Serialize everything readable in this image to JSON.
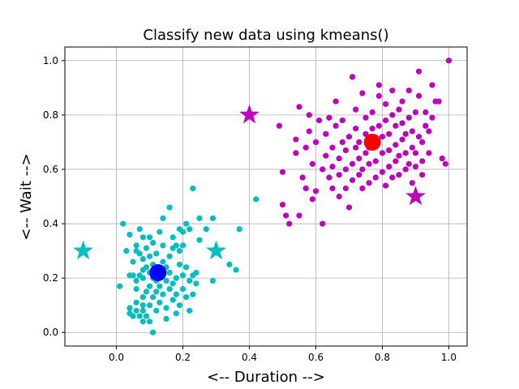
{
  "chart_data": {
    "type": "scatter",
    "title": "Classify new data using kmeans()",
    "xlabel": "<-- Duration -->",
    "ylabel": "<-- Wait -->",
    "xlim": [
      -0.155,
      1.055
    ],
    "ylim": [
      -0.05,
      1.05
    ],
    "xticks": [
      "0.0",
      "0.2",
      "0.4",
      "0.6",
      "0.8",
      "1.0"
    ],
    "yticks": [
      "0.0",
      "0.2",
      "0.4",
      "0.6",
      "0.8",
      "1.0"
    ],
    "grid": true,
    "colors": {
      "cluster_1": "#00bfbf",
      "cluster_2": "#bf00bf",
      "centroid_1": "#0000ff",
      "centroid_2": "#ff0000"
    },
    "series": [
      {
        "values": [
          [
            0.01,
            0.17
          ],
          [
            0.02,
            0.4
          ],
          [
            0.03,
            0.3
          ],
          [
            0.04,
            0.21
          ],
          [
            0.04,
            0.36
          ],
          [
            0.04,
            0.09
          ],
          [
            0.04,
            0.07
          ],
          [
            0.05,
            0.06
          ],
          [
            0.05,
            0.21
          ],
          [
            0.05,
            0.26
          ],
          [
            0.06,
            0.19
          ],
          [
            0.06,
            0.3
          ],
          [
            0.06,
            0.32
          ],
          [
            0.06,
            0.08
          ],
          [
            0.06,
            0.11
          ],
          [
            0.06,
            0.16
          ],
          [
            0.07,
            0.21
          ],
          [
            0.07,
            0.29
          ],
          [
            0.07,
            0.38
          ],
          [
            0.07,
            0.06
          ],
          [
            0.08,
            0.1
          ],
          [
            0.08,
            0.13
          ],
          [
            0.08,
            0.2
          ],
          [
            0.08,
            0.23
          ],
          [
            0.08,
            0.27
          ],
          [
            0.08,
            0.35
          ],
          [
            0.08,
            0.04
          ],
          [
            0.08,
            0.08
          ],
          [
            0.09,
            0.15
          ],
          [
            0.09,
            0.24
          ],
          [
            0.09,
            0.31
          ],
          [
            0.09,
            0.06
          ],
          [
            0.1,
            0.1
          ],
          [
            0.1,
            0.17
          ],
          [
            0.1,
            0.22
          ],
          [
            0.1,
            0.28
          ],
          [
            0.1,
            0.35
          ],
          [
            0.1,
            0.04
          ],
          [
            0.11,
            0.0
          ],
          [
            0.11,
            0.13
          ],
          [
            0.11,
            0.2
          ],
          [
            0.11,
            0.25
          ],
          [
            0.11,
            0.33
          ],
          [
            0.12,
            0.08
          ],
          [
            0.12,
            0.15
          ],
          [
            0.12,
            0.19
          ],
          [
            0.12,
            0.24
          ],
          [
            0.12,
            0.29
          ],
          [
            0.13,
            0.11
          ],
          [
            0.13,
            0.17
          ],
          [
            0.13,
            0.22
          ],
          [
            0.13,
            0.37
          ],
          [
            0.14,
            0.14
          ],
          [
            0.14,
            0.21
          ],
          [
            0.14,
            0.26
          ],
          [
            0.14,
            0.32
          ],
          [
            0.14,
            0.42
          ],
          [
            0.15,
            0.19
          ],
          [
            0.15,
            0.24
          ],
          [
            0.15,
            0.05
          ],
          [
            0.15,
            0.09
          ],
          [
            0.16,
            0.16
          ],
          [
            0.16,
            0.22
          ],
          [
            0.16,
            0.28
          ],
          [
            0.16,
            0.46
          ],
          [
            0.17,
            0.12
          ],
          [
            0.17,
            0.18
          ],
          [
            0.17,
            0.31
          ],
          [
            0.17,
            0.35
          ],
          [
            0.18,
            0.07
          ],
          [
            0.18,
            0.14
          ],
          [
            0.18,
            0.2
          ],
          [
            0.18,
            0.32
          ],
          [
            0.19,
            0.1
          ],
          [
            0.19,
            0.25
          ],
          [
            0.19,
            0.3
          ],
          [
            0.19,
            0.38
          ],
          [
            0.2,
            0.16
          ],
          [
            0.2,
            0.21
          ],
          [
            0.2,
            0.32
          ],
          [
            0.2,
            0.37
          ],
          [
            0.21,
            0.13
          ],
          [
            0.21,
            0.24
          ],
          [
            0.21,
            0.4
          ],
          [
            0.22,
            0.08
          ],
          [
            0.22,
            0.19
          ],
          [
            0.22,
            0.38
          ],
          [
            0.23,
            0.53
          ],
          [
            0.23,
            0.21
          ],
          [
            0.23,
            0.14
          ],
          [
            0.24,
            0.18
          ],
          [
            0.24,
            0.22
          ],
          [
            0.25,
            0.34
          ],
          [
            0.25,
            0.42
          ],
          [
            0.27,
            0.38
          ],
          [
            0.29,
            0.19
          ],
          [
            0.29,
            0.42
          ],
          [
            0.34,
            0.25
          ],
          [
            0.36,
            0.23
          ],
          [
            0.37,
            0.38
          ],
          [
            0.42,
            0.49
          ]
        ]
      },
      {
        "values": [
          [
            0.49,
            0.76
          ],
          [
            0.5,
            0.59
          ],
          [
            0.5,
            0.47
          ],
          [
            0.51,
            0.43
          ],
          [
            0.52,
            0.4
          ],
          [
            0.54,
            0.66
          ],
          [
            0.54,
            0.71
          ],
          [
            0.55,
            0.43
          ],
          [
            0.55,
            0.83
          ],
          [
            0.56,
            0.57
          ],
          [
            0.57,
            0.53
          ],
          [
            0.57,
            0.68
          ],
          [
            0.58,
            0.8
          ],
          [
            0.58,
            0.74
          ],
          [
            0.59,
            0.49
          ],
          [
            0.59,
            0.62
          ],
          [
            0.6,
            0.52
          ],
          [
            0.6,
            0.7
          ],
          [
            0.61,
            0.78
          ],
          [
            0.62,
            0.6
          ],
          [
            0.62,
            0.4
          ],
          [
            0.63,
            0.65
          ],
          [
            0.63,
            0.73
          ],
          [
            0.64,
            0.57
          ],
          [
            0.64,
            0.79
          ],
          [
            0.65,
            0.53
          ],
          [
            0.65,
            0.61
          ],
          [
            0.65,
            0.68
          ],
          [
            0.66,
            0.76
          ],
          [
            0.66,
            0.85
          ],
          [
            0.67,
            0.5
          ],
          [
            0.67,
            0.58
          ],
          [
            0.67,
            0.64
          ],
          [
            0.68,
            0.7
          ],
          [
            0.68,
            0.78
          ],
          [
            0.69,
            0.53
          ],
          [
            0.69,
            0.6
          ],
          [
            0.69,
            0.67
          ],
          [
            0.7,
            0.72
          ],
          [
            0.7,
            0.46
          ],
          [
            0.71,
            0.94
          ],
          [
            0.71,
            0.56
          ],
          [
            0.71,
            0.62
          ],
          [
            0.72,
            0.68
          ],
          [
            0.72,
            0.75
          ],
          [
            0.72,
            0.82
          ],
          [
            0.73,
            0.58
          ],
          [
            0.73,
            0.64
          ],
          [
            0.73,
            0.7
          ],
          [
            0.74,
            0.88
          ],
          [
            0.74,
            0.53
          ],
          [
            0.74,
            0.6
          ],
          [
            0.75,
            0.66
          ],
          [
            0.75,
            0.73
          ],
          [
            0.75,
            0.79
          ],
          [
            0.76,
            0.55
          ],
          [
            0.76,
            0.62
          ],
          [
            0.76,
            0.68
          ],
          [
            0.77,
            0.75
          ],
          [
            0.77,
            0.81
          ],
          [
            0.78,
            0.57
          ],
          [
            0.78,
            0.63
          ],
          [
            0.78,
            0.7
          ],
          [
            0.79,
            0.76
          ],
          [
            0.79,
            0.87
          ],
          [
            0.79,
            0.91
          ],
          [
            0.8,
            0.59
          ],
          [
            0.8,
            0.66
          ],
          [
            0.8,
            0.72
          ],
          [
            0.81,
            0.78
          ],
          [
            0.81,
            0.84
          ],
          [
            0.81,
            0.54
          ],
          [
            0.82,
            0.61
          ],
          [
            0.82,
            0.67
          ],
          [
            0.82,
            0.73
          ],
          [
            0.83,
            0.8
          ],
          [
            0.83,
            0.89
          ],
          [
            0.83,
            0.57
          ],
          [
            0.84,
            0.63
          ],
          [
            0.84,
            0.69
          ],
          [
            0.84,
            0.76
          ],
          [
            0.85,
            0.82
          ],
          [
            0.85,
            0.58
          ],
          [
            0.85,
            0.65
          ],
          [
            0.86,
            0.71
          ],
          [
            0.86,
            0.77
          ],
          [
            0.86,
            0.85
          ],
          [
            0.87,
            0.6
          ],
          [
            0.87,
            0.66
          ],
          [
            0.87,
            0.73
          ],
          [
            0.88,
            0.79
          ],
          [
            0.88,
            0.89
          ],
          [
            0.88,
            0.62
          ],
          [
            0.89,
            0.68
          ],
          [
            0.89,
            0.74
          ],
          [
            0.89,
            0.55
          ],
          [
            0.9,
            0.81
          ],
          [
            0.9,
            0.61
          ],
          [
            0.9,
            0.66
          ],
          [
            0.91,
            0.72
          ],
          [
            0.91,
            0.87
          ],
          [
            0.91,
            0.96
          ],
          [
            0.92,
            0.58
          ],
          [
            0.92,
            0.63
          ],
          [
            0.92,
            0.7
          ],
          [
            0.93,
            0.76
          ],
          [
            0.93,
            0.81
          ],
          [
            0.94,
            0.66
          ],
          [
            0.94,
            0.74
          ],
          [
            0.95,
            0.91
          ],
          [
            0.95,
            0.79
          ],
          [
            0.96,
            0.85
          ],
          [
            0.97,
            0.85
          ],
          [
            0.98,
            0.64
          ],
          [
            0.99,
            0.62
          ],
          [
            1.0,
            1.0
          ]
        ]
      }
    ],
    "centroids": [
      {
        "x": 0.125,
        "y": 0.22
      },
      {
        "x": 0.77,
        "y": 0.7
      }
    ],
    "new_points": [
      {
        "x": -0.1,
        "y": 0.3,
        "cluster": 1
      },
      {
        "x": 0.3,
        "y": 0.3,
        "cluster": 1
      },
      {
        "x": 0.4,
        "y": 0.8,
        "cluster": 2
      },
      {
        "x": 0.9,
        "y": 0.5,
        "cluster": 2
      }
    ]
  }
}
